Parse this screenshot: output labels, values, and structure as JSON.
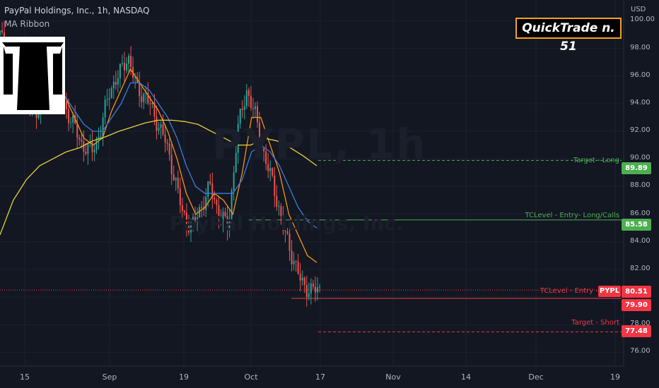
{
  "header": {
    "title": "PayPal Holdings, Inc., 1h, NASDAQ",
    "indicator": "MA Ribbon"
  },
  "watermark": {
    "symbol": "PYPL, 1h",
    "name": "PayPal Holdings, Inc."
  },
  "badge": {
    "text": "QuickTrade n. 51",
    "border_color": "#f7a21b"
  },
  "axis": {
    "currency": "USD"
  },
  "levels": {
    "target_long": {
      "label": "Target - Long",
      "value": "89.89",
      "color": "#4caf50"
    },
    "entry_long": {
      "label": "TCLevel - Entry- Long/Calls",
      "value": "85.58",
      "color": "#4caf50"
    },
    "entry_short": {
      "label": "TCLevel - Entry - Short",
      "value": "79.90",
      "color": "#f23645"
    },
    "target_short": {
      "label": "Target - Short",
      "value": "77.48",
      "color": "#f23645"
    },
    "current": {
      "ticker": "PYPL",
      "value": "80.51",
      "color": "#f23645"
    }
  },
  "chart_data": {
    "type": "line",
    "ylim": [
      75,
      101.5
    ],
    "y_ticks": [
      "100.00",
      "98.00",
      "96.00",
      "94.00",
      "92.00",
      "90.00",
      "88.00",
      "86.00",
      "84.00",
      "82.00",
      "80.00",
      "78.00",
      "76.00"
    ],
    "x_ticks": [
      "15",
      "Sep",
      "19",
      "Oct",
      "17",
      "Nov",
      "14",
      "Dec",
      "19"
    ],
    "series": [
      {
        "color": "#26a69a",
        "values": [
          99,
          97,
          95.5,
          94,
          93.5,
          95,
          96,
          94,
          92.5,
          91,
          90.5,
          92,
          95,
          96,
          97.5,
          95,
          94.5,
          93,
          91.5,
          89,
          86,
          85,
          86.5,
          88,
          86,
          85,
          92,
          95,
          93,
          90,
          88,
          85,
          83,
          81,
          80.5,
          80.5
        ]
      },
      {
        "color": "#f7931a",
        "values": [
          98,
          97.5,
          95.5,
          94.5,
          94,
          94.5,
          95.5,
          94.5,
          93,
          91.5,
          91,
          91.5,
          93.5,
          95,
          96.5,
          95.5,
          94.5,
          93.5,
          92,
          90,
          87.5,
          86,
          86.5,
          87.5,
          87,
          86,
          89,
          93,
          93,
          91,
          89,
          86,
          84.5,
          83,
          82.5
        ]
      },
      {
        "color": "#3d7bd9",
        "values": [
          97,
          96.5,
          95.5,
          95,
          94.5,
          94.5,
          95,
          94.5,
          93.5,
          92.5,
          92,
          92,
          93,
          94,
          95.5,
          95.5,
          95,
          94,
          93,
          91.5,
          89.5,
          88,
          87.5,
          87.5,
          87.5,
          87.5,
          88.5,
          90.5,
          91,
          90.5,
          89.5,
          88,
          86.5,
          85.5,
          85
        ]
      },
      {
        "color": "#e6d23d",
        "values": [
          84.5,
          87,
          88.5,
          89.5,
          90,
          90.5,
          90.8,
          91.3,
          91.6,
          92,
          92.3,
          92.6,
          92.8,
          92.8,
          92.7,
          92.5,
          92,
          91.5,
          91,
          91,
          91.5,
          91.3,
          90.8,
          90.2,
          89.5
        ]
      }
    ]
  }
}
